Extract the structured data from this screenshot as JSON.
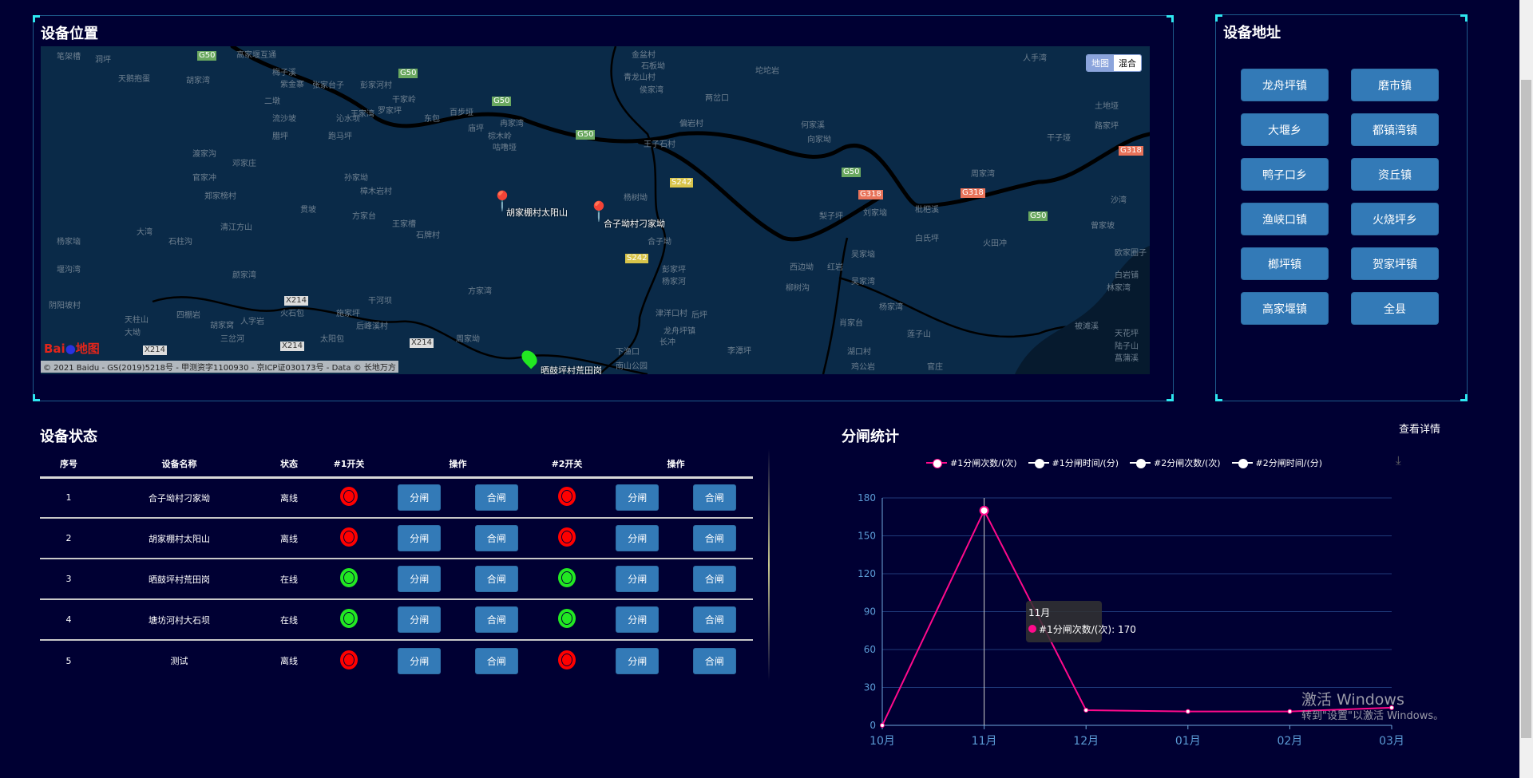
{
  "map_panel": {
    "title": "设备位置",
    "map_types": [
      "地图",
      "混合"
    ],
    "copyright": "© 2021 Baidu - GS(2019)5218号 - 甲测资字1100930 - 京ICP证030173号 - Data © 长地万方",
    "logo": "Bai地图",
    "markers": [
      {
        "label": "胡家棚村太阳山",
        "status": "offline"
      },
      {
        "label": "合子坳村刁家坳",
        "status": "offline"
      },
      {
        "label": "晒鼓坪村荒田岗",
        "status": "online"
      }
    ],
    "places": [
      "笔架槽",
      "洞坪",
      "天鹅抱蛋",
      "胡家湾",
      "高家堰互通",
      "梅子溪",
      "紫金寨",
      "二墩",
      "张家台子",
      "彭家河村",
      "干家岭",
      "王家湾",
      "罗家坪",
      "东包",
      "百步垭",
      "庙坪",
      "冉家湾",
      "棕木岭",
      "咕噜垭",
      "流沙坡",
      "沁水坝",
      "腊坪",
      "跑马坪",
      "渡家沟",
      "邓家庄",
      "官家冲",
      "郑家榜村",
      "孙家坳",
      "樟木岩村",
      "贯坡",
      "方家台",
      "王家槽",
      "石牌村",
      "清江方山",
      "大湾",
      "石柱沟",
      "杨家垴",
      "堰沟湾",
      "颜家湾",
      "方家湾",
      "干河坝",
      "阴阳坡村",
      "天柱山",
      "大坳",
      "四棚岩",
      "人字岩",
      "胡家窝",
      "火石包",
      "施家坪",
      "后峰溪村",
      "三岔河",
      "太阳包",
      "周家坳",
      "金盆村",
      "石板坳",
      "青龙山村",
      "侯家湾",
      "两岔口",
      "偏岩村",
      "王子石村",
      "杨树坳",
      "合子坳",
      "彭家坪",
      "杨家河",
      "津洋口村",
      "后坪",
      "龙舟坪镇",
      "长冲",
      "下渔口",
      "李潭坪",
      "南山公园",
      "坨坨岩",
      "何家溪",
      "向家坳",
      "梨子坪",
      "刘家垴",
      "枇杷溪",
      "白氏坪",
      "吴家垴",
      "西边坳",
      "红岩",
      "柳树沟",
      "吴家湾",
      "肖家台",
      "杨家湾",
      "莲子山",
      "湖口村",
      "鸡公岩",
      "官庄",
      "火田冲",
      "周家湾",
      "沙湾",
      "曾家坡",
      "欧家圈子",
      "白岩铺",
      "林家湾",
      "被滩溪",
      "天花坪",
      "陆子山",
      "菖蒲溪",
      "土地垭",
      "路家坪",
      "干子垭",
      "人手湾"
    ],
    "road_badges": [
      "G50",
      "G50",
      "G50",
      "G318",
      "G318",
      "G318",
      "G50",
      "G50",
      "G50",
      "S242",
      "S242",
      "X214",
      "X214",
      "X214",
      "X214"
    ]
  },
  "address_panel": {
    "title": "设备地址",
    "buttons": [
      "龙舟坪镇",
      "磨市镇",
      "大堰乡",
      "都镇湾镇",
      "鸭子口乡",
      "资丘镇",
      "渔峡口镇",
      "火烧坪乡",
      "榔坪镇",
      "贺家坪镇",
      "高家堰镇",
      "全县"
    ]
  },
  "status_panel": {
    "title": "设备状态",
    "columns": [
      "序号",
      "设备名称",
      "状态",
      "#1开关",
      "操作",
      "#2开关",
      "操作"
    ],
    "open_label": "分闸",
    "close_label": "合闸",
    "rows": [
      {
        "no": "1",
        "name": "合子坳村刁家坳",
        "status": "离线",
        "sw1": "off",
        "sw2": "off"
      },
      {
        "no": "2",
        "name": "胡家棚村太阳山",
        "status": "离线",
        "sw1": "off",
        "sw2": "off"
      },
      {
        "no": "3",
        "name": "晒鼓坪村荒田岗",
        "status": "在线",
        "sw1": "on",
        "sw2": "on"
      },
      {
        "no": "4",
        "name": "塘坊河村大石坝",
        "status": "在线",
        "sw1": "on",
        "sw2": "on"
      },
      {
        "no": "5",
        "name": "测试",
        "status": "离线",
        "sw1": "off",
        "sw2": "off"
      }
    ],
    "colors": {
      "off": "#ff0000",
      "on": "#22e822"
    }
  },
  "chart_panel": {
    "title": "分闸统计",
    "detail_link": "查看详情",
    "download_icon": "download-icon",
    "tooltip": {
      "title": "11月",
      "series": "#1分闸次数/(次)",
      "value": "170"
    }
  },
  "chart_data": {
    "type": "line",
    "categories": [
      "10月",
      "11月",
      "12月",
      "01月",
      "02月",
      "03月"
    ],
    "yticks": [
      0,
      30,
      60,
      90,
      120,
      150,
      180
    ],
    "ylim": [
      0,
      180
    ],
    "grid": true,
    "legend_position": "top",
    "series": [
      {
        "name": "#1分闸次数/(次)",
        "color": "#ff0a8c",
        "values": [
          0,
          170,
          12,
          11,
          11,
          14
        ]
      },
      {
        "name": "#1分闸时间/(分)",
        "color": "#ffffff"
      },
      {
        "name": "#2分闸次数/(次)",
        "color": "#ffffff"
      },
      {
        "name": "#2分闸时间/(分)",
        "color": "#ffffff"
      }
    ]
  },
  "watermark": {
    "line1": "激活 Windows",
    "line2": "转到\"设置\"以激活 Windows。"
  }
}
